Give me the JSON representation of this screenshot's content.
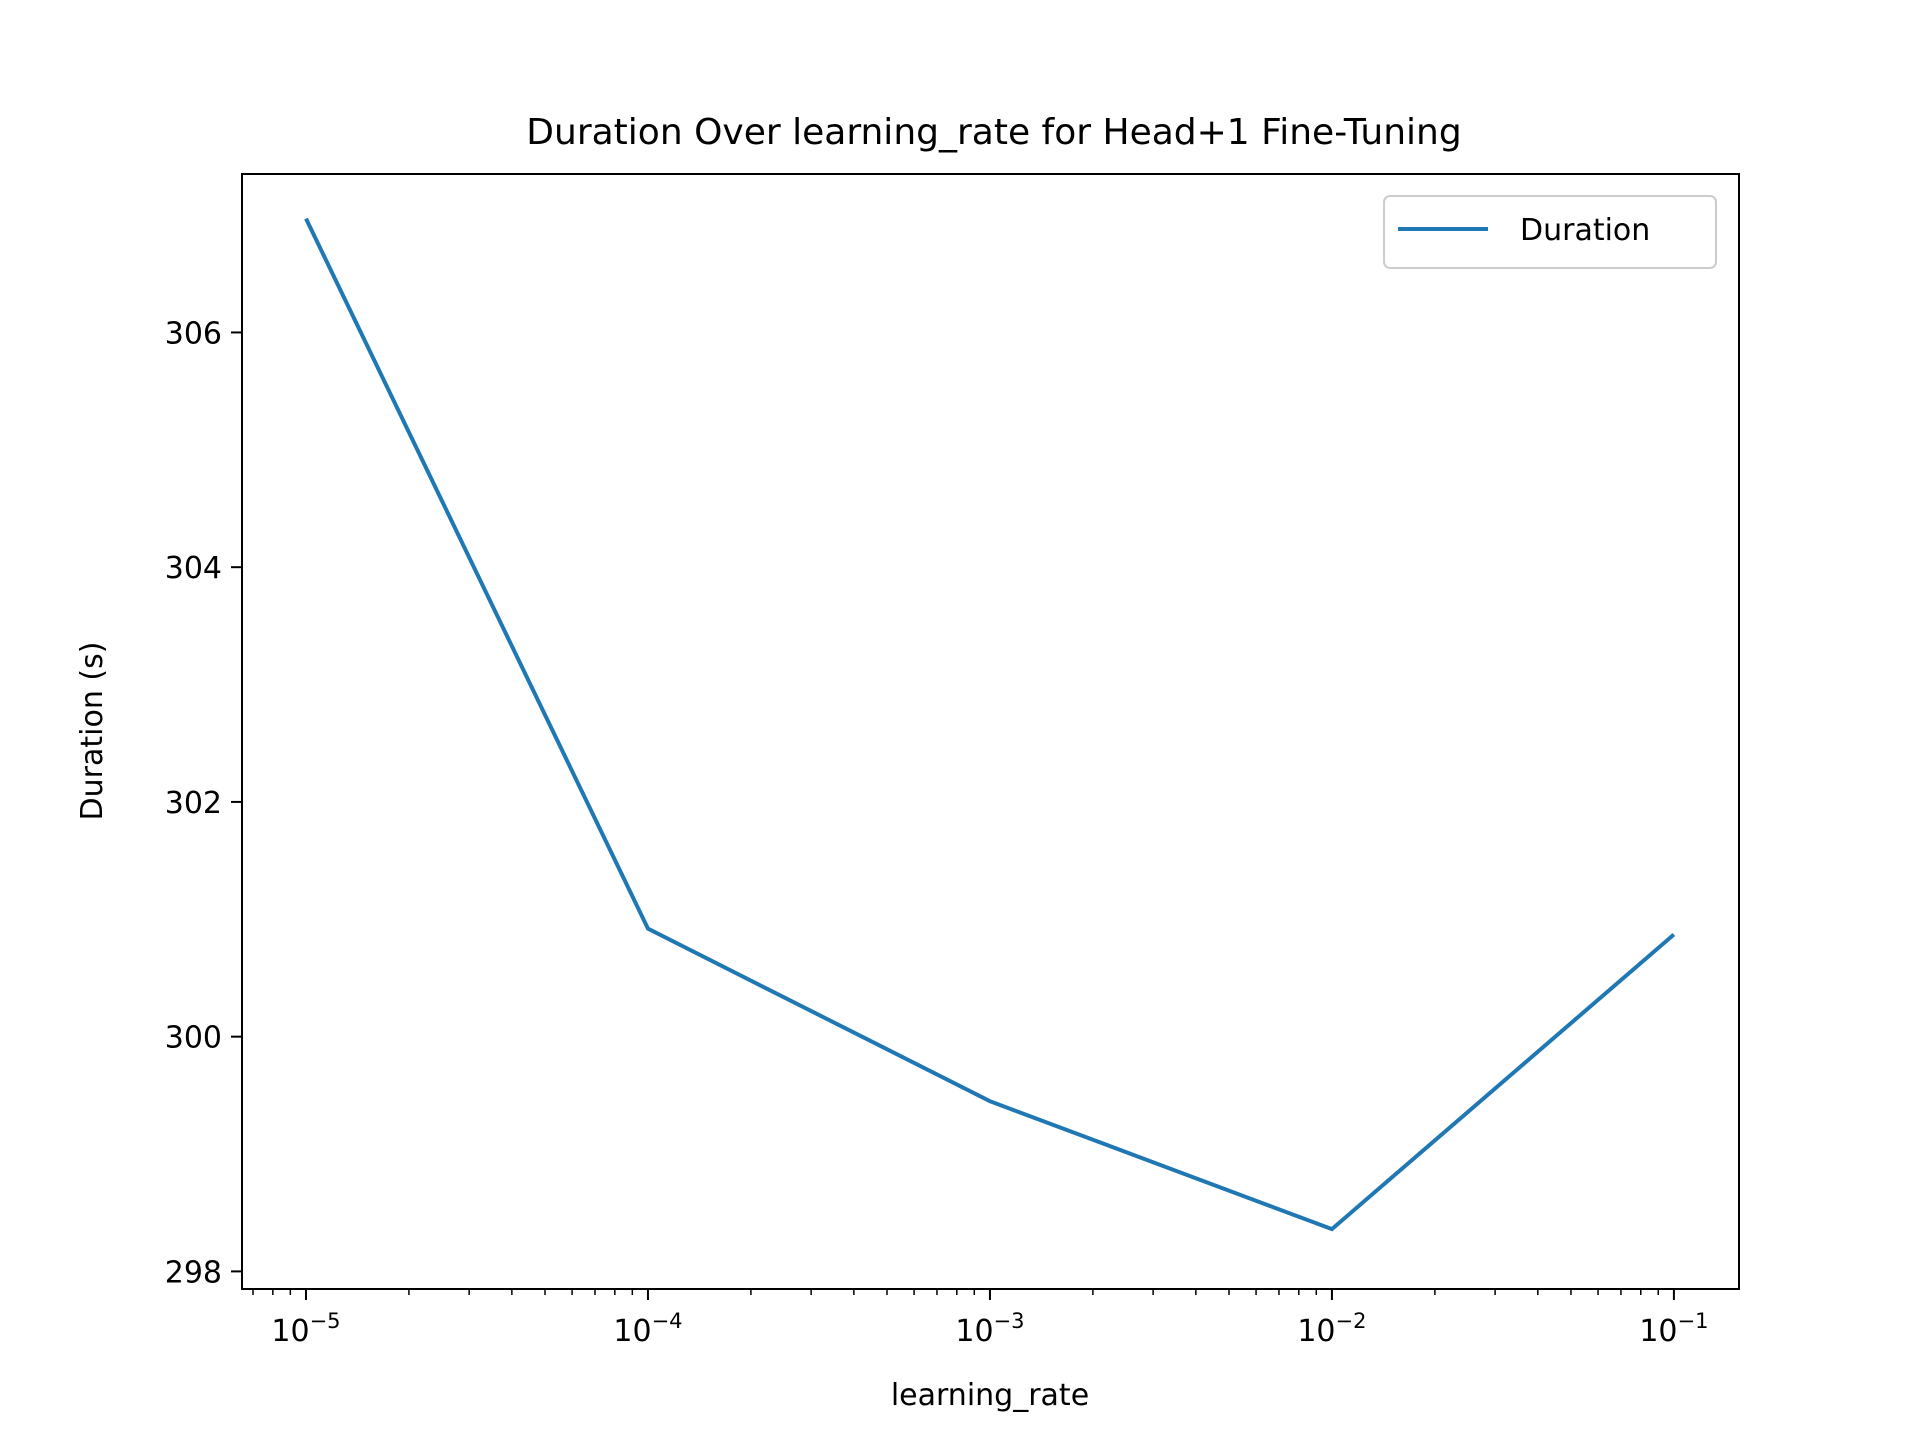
{
  "chart_data": {
    "type": "line",
    "title": "Duration Over learning_rate for Head+1 Fine-Tuning",
    "xlabel": "learning_rate",
    "ylabel": "Duration (s)",
    "xscale": "log",
    "xlim": [
      6.5e-06,
      0.155
    ],
    "ylim": [
      297.85,
      307.35
    ],
    "x": [
      1e-05,
      0.0001,
      0.001,
      0.01,
      0.1
    ],
    "x_ticks": [
      {
        "value": 1e-05,
        "base": "10",
        "exp": "−5"
      },
      {
        "value": 0.0001,
        "base": "10",
        "exp": "−4"
      },
      {
        "value": 0.001,
        "base": "10",
        "exp": "−3"
      },
      {
        "value": 0.01,
        "base": "10",
        "exp": "−2"
      },
      {
        "value": 0.1,
        "base": "10",
        "exp": "−1"
      }
    ],
    "y_ticks": [
      {
        "value": 298,
        "label": "298"
      },
      {
        "value": 300,
        "label": "300"
      },
      {
        "value": 302,
        "label": "302"
      },
      {
        "value": 304,
        "label": "304"
      },
      {
        "value": 306,
        "label": "306"
      }
    ],
    "series": [
      {
        "name": "Duration",
        "color": "#1f77b4",
        "values": [
          306.97,
          300.92,
          299.45,
          298.36,
          300.87
        ]
      }
    ],
    "legend": {
      "location": "upper right",
      "entries": [
        "Duration"
      ]
    },
    "grid": false
  }
}
